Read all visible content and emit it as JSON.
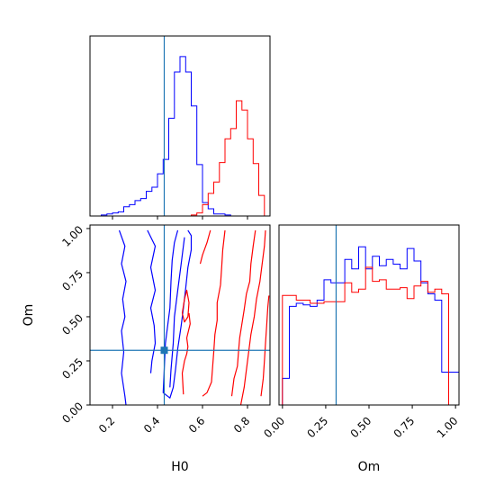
{
  "chart_data": {
    "type": "corner",
    "parameters": [
      "H0",
      "Om"
    ],
    "truth": {
      "H0": 0.43,
      "Om": 0.31
    },
    "series_colors": [
      "#0000ff",
      "#ff0000"
    ],
    "truth_color": "#1f77b4",
    "panels": [
      {
        "name": "H0-histogram",
        "type": "histogram",
        "x_param": "H0",
        "xlim": [
          0.1,
          0.9
        ],
        "yaxis_shown": false,
        "bin_edges": [
          0.1,
          0.125,
          0.15,
          0.175,
          0.2,
          0.225,
          0.25,
          0.275,
          0.3,
          0.325,
          0.35,
          0.375,
          0.4,
          0.425,
          0.45,
          0.475,
          0.5,
          0.525,
          0.55,
          0.575,
          0.6,
          0.625,
          0.65,
          0.675,
          0.7,
          0.725,
          0.75,
          0.775,
          0.8,
          0.825,
          0.85,
          0.875,
          0.9
        ],
        "series": [
          {
            "color": "#0000ff",
            "counts": [
              0,
              0,
              1,
              2,
              3,
              4,
              9,
              11,
              15,
              17,
              24,
              28,
              41,
              55,
              95,
              140,
              155,
              140,
              107,
              50,
              13,
              7,
              2,
              2,
              1,
              0,
              0,
              0,
              0,
              0,
              0,
              0
            ]
          },
          {
            "color": "#ff0000",
            "counts": [
              0,
              0,
              0,
              0,
              0,
              0,
              0,
              0,
              0,
              0,
              0,
              0,
              0,
              0,
              0,
              0,
              0,
              0,
              1,
              3,
              11,
              22,
              33,
              52,
              75,
              85,
              112,
              103,
              75,
              51,
              20,
              0
            ]
          }
        ],
        "ylim": [
          0,
          175
        ]
      },
      {
        "name": "H0-Om-contours",
        "type": "contour",
        "x_param": "H0",
        "y_param": "Om",
        "xlim": [
          0.1,
          0.9
        ],
        "ylim": [
          0,
          1.02
        ],
        "x_ticks": [
          0.2,
          0.4,
          0.6,
          0.8
        ],
        "x_tick_labels": [
          "0.2",
          "0.4",
          "0.6",
          "0.8"
        ],
        "y_ticks": [
          0.0,
          0.25,
          0.5,
          0.75,
          1.0
        ],
        "y_tick_labels": [
          "0.00",
          "0.25",
          "0.50",
          "0.75",
          "1.00"
        ],
        "xlabel": "H0",
        "ylabel": "Om",
        "series": [
          {
            "color": "#0000ff",
            "contours": [
              [
                [
                  0.23,
                  0.99
                ],
                [
                  0.255,
                  0.9
                ],
                [
                  0.24,
                  0.8
                ],
                [
                  0.26,
                  0.7
                ],
                [
                  0.245,
                  0.6
                ],
                [
                  0.255,
                  0.5
                ],
                [
                  0.24,
                  0.42
                ],
                [
                  0.25,
                  0.3
                ],
                [
                  0.24,
                  0.18
                ],
                [
                  0.255,
                  0.05
                ],
                [
                  0.26,
                  0.0
                ]
              ],
              [
                [
                  0.355,
                  0.99
                ],
                [
                  0.39,
                  0.9
                ],
                [
                  0.37,
                  0.78
                ],
                [
                  0.39,
                  0.65
                ],
                [
                  0.37,
                  0.55
                ],
                [
                  0.385,
                  0.45
                ],
                [
                  0.39,
                  0.35
                ],
                [
                  0.375,
                  0.25
                ],
                [
                  0.37,
                  0.18
                ]
              ],
              [
                [
                  0.49,
                  0.99
                ],
                [
                  0.475,
                  0.92
                ],
                [
                  0.465,
                  0.82
                ],
                [
                  0.46,
                  0.7
                ],
                [
                  0.455,
                  0.55
                ],
                [
                  0.445,
                  0.45
                ],
                [
                  0.435,
                  0.35
                ],
                [
                  0.43,
                  0.2
                ],
                [
                  0.425,
                  0.07
                ],
                [
                  0.455,
                  0.04
                ],
                [
                  0.47,
                  0.1
                ],
                [
                  0.48,
                  0.2
                ],
                [
                  0.49,
                  0.32
                ],
                [
                  0.505,
                  0.45
                ],
                [
                  0.515,
                  0.55
                ],
                [
                  0.525,
                  0.66
                ],
                [
                  0.535,
                  0.78
                ],
                [
                  0.55,
                  0.88
                ],
                [
                  0.55,
                  0.96
                ],
                [
                  0.535,
                  0.99
                ]
              ],
              [
                [
                  0.52,
                  0.95
                ],
                [
                  0.505,
                  0.8
                ],
                [
                  0.49,
                  0.65
                ],
                [
                  0.475,
                  0.5
                ],
                [
                  0.47,
                  0.35
                ],
                [
                  0.46,
                  0.2
                ],
                [
                  0.455,
                  0.1
                ]
              ]
            ]
          },
          {
            "color": "#ff0000",
            "contours": [
              [
                [
                  0.635,
                  0.99
                ],
                [
                  0.62,
                  0.92
                ],
                [
                  0.6,
                  0.85
                ],
                [
                  0.59,
                  0.8
                ]
              ],
              [
                [
                  0.51,
                  0.52
                ],
                [
                  0.52,
                  0.6
                ],
                [
                  0.53,
                  0.65
                ],
                [
                  0.54,
                  0.58
                ],
                [
                  0.535,
                  0.5
                ],
                [
                  0.52,
                  0.47
                ],
                [
                  0.51,
                  0.52
                ]
              ],
              [
                [
                  0.515,
                  0.06
                ],
                [
                  0.51,
                  0.18
                ],
                [
                  0.52,
                  0.25
                ],
                [
                  0.53,
                  0.29
                ],
                [
                  0.535,
                  0.33
                ],
                [
                  0.53,
                  0.38
                ],
                [
                  0.545,
                  0.46
                ],
                [
                  0.54,
                  0.52
                ]
              ],
              [
                [
                  0.6,
                  0.05
                ],
                [
                  0.62,
                  0.07
                ],
                [
                  0.64,
                  0.13
                ],
                [
                  0.645,
                  0.22
                ],
                [
                  0.65,
                  0.3
                ],
                [
                  0.655,
                  0.4
                ],
                [
                  0.665,
                  0.48
                ],
                [
                  0.665,
                  0.58
                ],
                [
                  0.68,
                  0.68
                ],
                [
                  0.685,
                  0.78
                ],
                [
                  0.69,
                  0.88
                ],
                [
                  0.7,
                  0.99
                ]
              ],
              [
                [
                  0.73,
                  0.05
                ],
                [
                  0.74,
                  0.15
                ],
                [
                  0.755,
                  0.22
                ],
                [
                  0.76,
                  0.3
                ],
                [
                  0.765,
                  0.38
                ],
                [
                  0.775,
                  0.46
                ],
                [
                  0.785,
                  0.54
                ],
                [
                  0.795,
                  0.63
                ],
                [
                  0.81,
                  0.7
                ],
                [
                  0.815,
                  0.8
                ],
                [
                  0.825,
                  0.9
                ],
                [
                  0.835,
                  0.99
                ]
              ],
              [
                [
                  0.77,
                  0.0
                ],
                [
                  0.785,
                  0.1
                ],
                [
                  0.795,
                  0.2
                ],
                [
                  0.805,
                  0.3
                ],
                [
                  0.815,
                  0.4
                ],
                [
                  0.83,
                  0.5
                ],
                [
                  0.84,
                  0.6
                ],
                [
                  0.855,
                  0.7
                ],
                [
                  0.865,
                  0.8
                ],
                [
                  0.875,
                  0.9
                ],
                [
                  0.88,
                  0.99
                ]
              ],
              [
                [
                  0.86,
                  0.05
                ],
                [
                  0.87,
                  0.15
                ],
                [
                  0.875,
                  0.25
                ],
                [
                  0.88,
                  0.35
                ],
                [
                  0.885,
                  0.45
                ],
                [
                  0.89,
                  0.55
                ],
                [
                  0.895,
                  0.62
                ]
              ]
            ]
          }
        ]
      },
      {
        "name": "Om-histogram",
        "type": "histogram",
        "x_param": "Om",
        "xlim": [
          -0.02,
          1.02
        ],
        "x_ticks": [
          0.0,
          0.25,
          0.5,
          0.75,
          1.0
        ],
        "x_tick_labels": [
          "0.00",
          "0.25",
          "0.50",
          "0.75",
          "1.00"
        ],
        "xlabel": "Om",
        "yaxis_shown": false,
        "bin_edges": [
          -0.02,
          0.0,
          0.04,
          0.08,
          0.12,
          0.16,
          0.2,
          0.24,
          0.28,
          0.32,
          0.36,
          0.4,
          0.44,
          0.48,
          0.52,
          0.56,
          0.6,
          0.64,
          0.68,
          0.72,
          0.76,
          0.8,
          0.84,
          0.88,
          0.92,
          0.96,
          1.0,
          1.02
        ],
        "series": [
          {
            "color": "#0000ff",
            "counts": [
              0,
              17,
              63,
              65,
              64,
              63,
              67,
              80,
              78,
              78,
              93,
              87,
              101,
              87,
              95,
              89,
              93,
              90,
              87,
              100,
              92,
              78,
              71,
              67,
              21,
              21,
              21
            ]
          },
          {
            "color": "#ff0000",
            "counts": [
              0,
              70,
              70,
              67,
              67,
              65,
              65,
              66,
              66,
              66,
              78,
              72,
              74,
              88,
              79,
              80,
              74,
              74,
              75,
              68,
              76,
              79,
              72,
              74,
              71,
              0,
              0
            ]
          }
        ],
        "ylim": [
          0,
          115
        ]
      }
    ]
  }
}
